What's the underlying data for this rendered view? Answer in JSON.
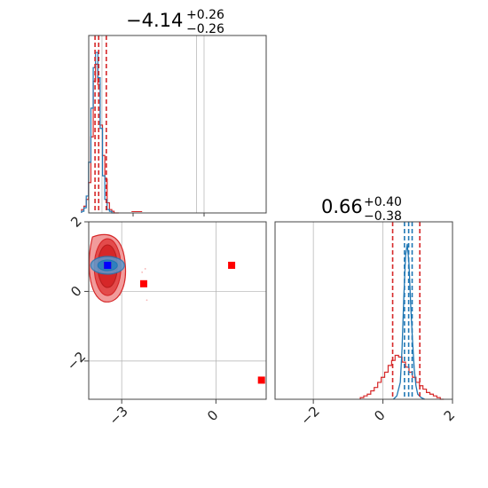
{
  "chart_data": {
    "type": "corner",
    "grid": true,
    "colors": {
      "posterior_a": "#d62728",
      "posterior_b": "#1f77b4",
      "truth_marker": "#ff0000",
      "best_fit_marker": "#0000ff",
      "axis": "#444444",
      "grid": "#b0b0b0"
    },
    "panels": [
      {
        "name": "marginal-param-1",
        "type": "histogram",
        "title": "−4.14",
        "title_plus": "+0.26",
        "title_minus": "−0.26",
        "xlim": [
          -3.6,
          1.6
        ],
        "red_hist": {
          "bins": [
            -3.93,
            -3.86,
            -3.79,
            -3.72,
            -3.65,
            -3.58,
            -3.51,
            -3.44,
            -3.37,
            -3.3,
            -3.23,
            -3.16,
            -3.09,
            -3.02,
            -2.95,
            -2.88
          ],
          "values": [
            0.02,
            0.04,
            0.08,
            0.18,
            0.45,
            0.78,
            0.88,
            0.76,
            0.52,
            0.34,
            0.2,
            0.06,
            0.02,
            0.01,
            0.0,
            0.0
          ]
        },
        "blue_hist": {
          "bins": [
            -3.93,
            -3.86,
            -3.79,
            -3.72,
            -3.65,
            -3.58,
            -3.51,
            -3.44,
            -3.37,
            -3.3,
            -3.23,
            -3.16,
            -3.09,
            -3.02
          ],
          "values": [
            0.01,
            0.03,
            0.1,
            0.3,
            0.62,
            0.86,
            0.95,
            0.8,
            0.5,
            0.22,
            0.08,
            0.02,
            0.01,
            0.0
          ]
        },
        "quantile_lines": [
          -3.56,
          -3.45,
          -3.22
        ],
        "outlier_bin": {
          "x": -2.3,
          "value": 0.01
        }
      },
      {
        "name": "joint-param-1-param-2",
        "type": "scatter",
        "xlim": [
          -3.6,
          1.6
        ],
        "ylim": [
          -3.1,
          2.0
        ],
        "xticks": [
          -3,
          0
        ],
        "xtick_labels": [
          "−3",
          "0"
        ],
        "yticks": [
          -2,
          0,
          2
        ],
        "ytick_labels": [
          "−2",
          "0",
          "2"
        ],
        "red_core": {
          "x": -3.45,
          "y": 0.75
        },
        "blue_core": {
          "x": -3.45,
          "y": 0.75
        },
        "truth_markers": [
          {
            "x": -3.45,
            "y": 0.75
          },
          {
            "x": -2.3,
            "y": 0.22
          },
          {
            "x": 0.5,
            "y": 0.75
          },
          {
            "x": 1.45,
            "y": -2.55
          }
        ],
        "best_fit_marker": {
          "x": -3.45,
          "y": 0.75
        }
      },
      {
        "name": "marginal-param-2",
        "type": "histogram",
        "title": "0.66",
        "title_plus": "+0.40",
        "title_minus": "−0.38",
        "xlim": [
          -3.1,
          2.0
        ],
        "xticks": [
          -2,
          0,
          2
        ],
        "xtick_labels": [
          "−2",
          "0",
          "2"
        ],
        "red_hist": {
          "bins": [
            -0.6,
            -0.5,
            -0.4,
            -0.3,
            -0.2,
            -0.1,
            0.0,
            0.1,
            0.2,
            0.3,
            0.4,
            0.5,
            0.6,
            0.7,
            0.8,
            0.9,
            1.0,
            1.1,
            1.2,
            1.3,
            1.4,
            1.5,
            1.6,
            1.7
          ],
          "values": [
            0.01,
            0.02,
            0.03,
            0.05,
            0.07,
            0.1,
            0.13,
            0.16,
            0.2,
            0.23,
            0.26,
            0.25,
            0.22,
            0.19,
            0.16,
            0.13,
            0.1,
            0.08,
            0.06,
            0.04,
            0.03,
            0.02,
            0.01,
            0.0
          ]
        },
        "blue_curve": {
          "x": [
            0.3,
            0.4,
            0.5,
            0.55,
            0.6,
            0.65,
            0.7,
            0.75,
            0.8,
            0.85,
            0.9,
            0.95,
            1.0,
            1.1,
            1.2
          ],
          "y": [
            0.0,
            0.02,
            0.1,
            0.3,
            0.6,
            0.85,
            0.92,
            0.8,
            0.55,
            0.35,
            0.18,
            0.08,
            0.03,
            0.01,
            0.0
          ]
        },
        "red_quantile_lines": [
          0.28,
          1.06
        ],
        "blue_quantile_lines": [
          0.62,
          0.74,
          0.84
        ]
      }
    ]
  }
}
